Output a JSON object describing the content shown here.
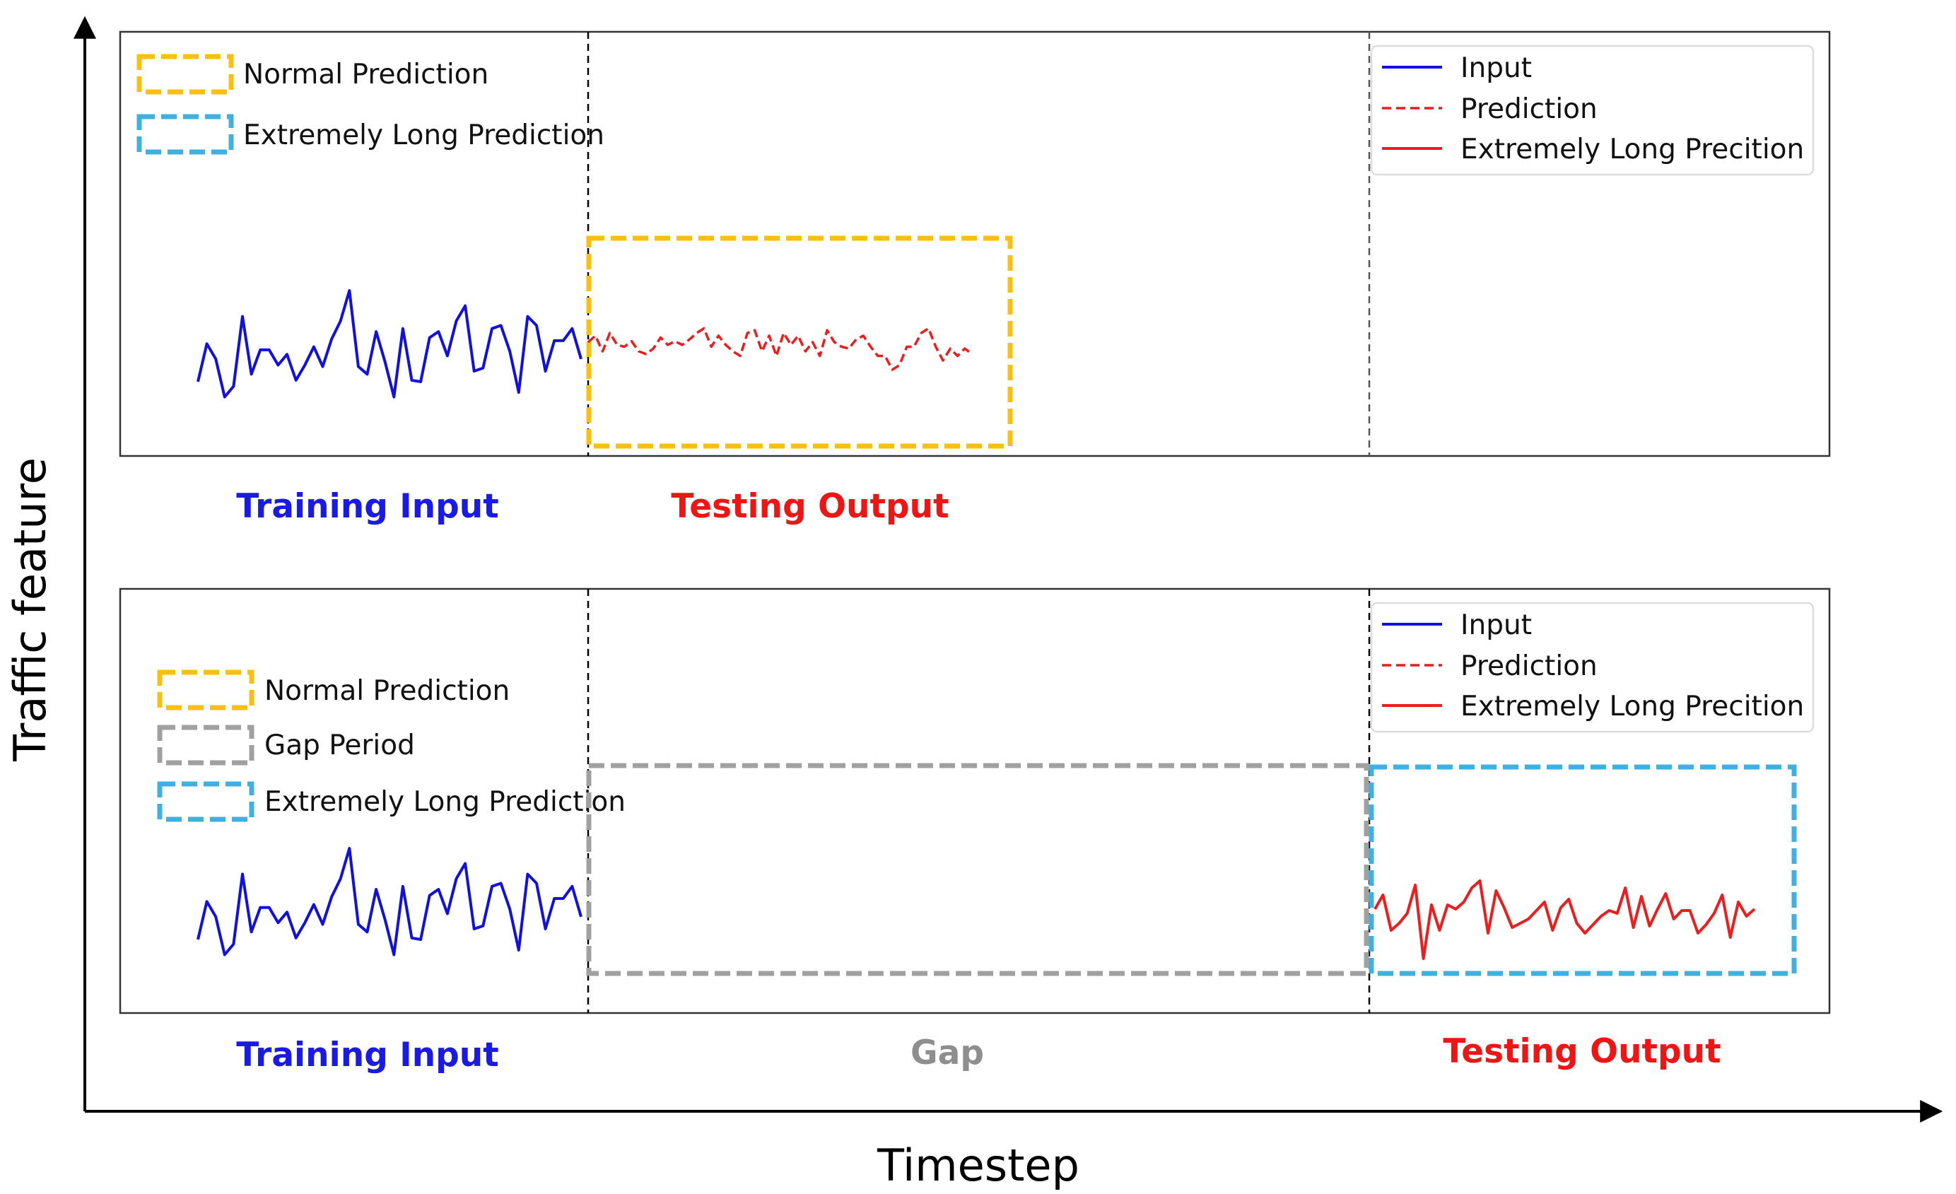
{
  "colors": {
    "input": "#1010e0",
    "prediction": "#ee1c1c",
    "normal_box": "#fbbf10",
    "long_box": "#3fb0e0",
    "gap_box": "#a0a0a0",
    "label_blue": "#1a1ae6",
    "label_red": "#ee1515",
    "label_gray": "#8e8e8e"
  },
  "axes": {
    "y_title": "Traffic feature",
    "x_title": "Timestep"
  },
  "panel_top": {
    "box_legend": [
      {
        "label": "Normal Prediction",
        "style": "normal_box"
      },
      {
        "label": "Extremely Long Prediction",
        "style": "long_box"
      }
    ],
    "line_legend": [
      {
        "label": "Input",
        "style": "solid-blue"
      },
      {
        "label": "Prediction",
        "style": "dashed-red"
      },
      {
        "label": "Extremely Long Precition",
        "style": "solid-red"
      }
    ],
    "section_labels": {
      "training": "Training Input",
      "testing": "Testing Output"
    }
  },
  "panel_bottom": {
    "box_legend": [
      {
        "label": "Normal Prediction",
        "style": "normal_box"
      },
      {
        "label": "Gap Period",
        "style": "gap_box"
      },
      {
        "label": "Extremely Long Prediction",
        "style": "long_box"
      }
    ],
    "line_legend": [
      {
        "label": "Input",
        "style": "solid-blue"
      },
      {
        "label": "Prediction",
        "style": "dashed-red"
      },
      {
        "label": "Extremely Long Precition",
        "style": "solid-red"
      }
    ],
    "section_labels": {
      "training": "Training Input",
      "gap": "Gap",
      "testing": "Testing Output"
    }
  },
  "series": {
    "input": [
      0.55,
      0.8,
      0.7,
      0.45,
      0.52,
      0.98,
      0.6,
      0.76,
      0.76,
      0.66,
      0.73,
      0.56,
      0.66,
      0.78,
      0.65,
      0.83,
      0.95,
      1.15,
      0.65,
      0.6,
      0.88,
      0.68,
      0.45,
      0.9,
      0.56,
      0.55,
      0.84,
      0.88,
      0.72,
      0.95,
      1.05,
      0.62,
      0.64,
      0.9,
      0.92,
      0.75,
      0.48,
      0.98,
      0.92,
      0.62,
      0.82,
      0.82,
      0.9,
      0.7
    ],
    "prediction": [
      0.85,
      0.92,
      0.75,
      0.95,
      0.82,
      0.8,
      0.86,
      0.75,
      0.72,
      0.78,
      0.9,
      0.82,
      0.86,
      0.82,
      0.88,
      0.95,
      1.0,
      0.8,
      0.92,
      0.82,
      0.75,
      0.7,
      0.95,
      0.98,
      0.75,
      0.92,
      0.7,
      0.95,
      0.82,
      0.92,
      0.75,
      0.85,
      0.7,
      0.98,
      0.85,
      0.8,
      0.78,
      0.88,
      0.92,
      0.8,
      0.7,
      0.7,
      0.55,
      0.6,
      0.8,
      0.8,
      0.95,
      1.0,
      0.8,
      0.65,
      0.78,
      0.7,
      0.78,
      0.72
    ],
    "extremely_long": [
      0.75,
      0.85,
      0.6,
      0.65,
      0.72,
      0.92,
      0.4,
      0.78,
      0.6,
      0.78,
      0.75,
      0.8,
      0.9,
      0.95,
      0.58,
      0.88,
      0.76,
      0.62,
      0.65,
      0.68,
      0.74,
      0.8,
      0.6,
      0.76,
      0.82,
      0.65,
      0.58,
      0.64,
      0.7,
      0.74,
      0.72,
      0.9,
      0.62,
      0.84,
      0.63,
      0.75,
      0.86,
      0.68,
      0.74,
      0.74,
      0.58,
      0.64,
      0.72,
      0.85,
      0.55,
      0.8,
      0.7,
      0.75
    ]
  }
}
